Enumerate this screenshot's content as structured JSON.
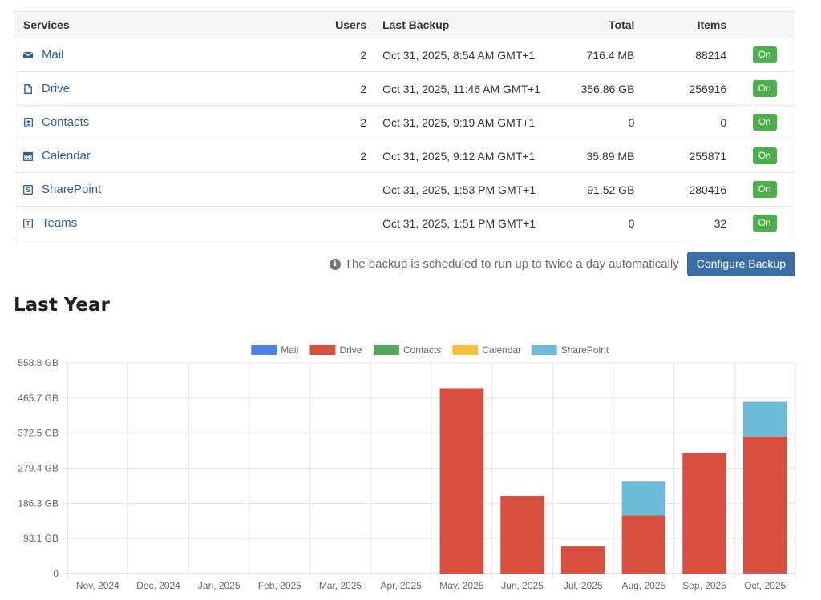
{
  "table": {
    "headers": {
      "services": "Services",
      "users": "Users",
      "last_backup": "Last Backup",
      "total": "Total",
      "items": "Items"
    },
    "rows": [
      {
        "icon": "mail-icon",
        "name": "Mail",
        "users": "2",
        "last_backup": "Oct 31, 2025, 8:54 AM GMT+1",
        "total": "716.4 MB",
        "items": "88214",
        "status": "On"
      },
      {
        "icon": "file-icon",
        "name": "Drive",
        "users": "2",
        "last_backup": "Oct 31, 2025, 11:46 AM GMT+1",
        "total": "356.86 GB",
        "items": "256916",
        "status": "On"
      },
      {
        "icon": "contact-card-icon",
        "name": "Contacts",
        "users": "2",
        "last_backup": "Oct 31, 2025, 9:19 AM GMT+1",
        "total": "0",
        "items": "0",
        "status": "On"
      },
      {
        "icon": "calendar-icon",
        "name": "Calendar",
        "users": "2",
        "last_backup": "Oct 31, 2025, 9:12 AM GMT+1",
        "total": "35.89 MB",
        "items": "255871",
        "status": "On"
      },
      {
        "icon": "sharepoint-icon",
        "name": "SharePoint",
        "users": "",
        "last_backup": "Oct 31, 2025, 1:53 PM GMT+1",
        "total": "91.52 GB",
        "items": "280416",
        "status": "On"
      },
      {
        "icon": "teams-icon",
        "name": "Teams",
        "users": "",
        "last_backup": "Oct 31, 2025, 1:51 PM GMT+1",
        "total": "0",
        "items": "32",
        "status": "On"
      }
    ]
  },
  "note": {
    "icon": "info-icon",
    "text": "The backup is scheduled to run up to twice a day automatically"
  },
  "configure_button": "Configure Backup",
  "section_title": "Last Year",
  "colors": {
    "link": "#2f5f97",
    "badge_on": "#4cae4c",
    "button": "#3a6ea5"
  },
  "chart_data": {
    "type": "bar",
    "stacked": true,
    "categories": [
      "Nov, 2024",
      "Dec, 2024",
      "Jan, 2025",
      "Feb, 2025",
      "Mar, 2025",
      "Apr, 2025",
      "May, 2025",
      "Jun, 2025",
      "Jul, 2025",
      "Aug, 2025",
      "Sep, 2025",
      "Oct, 2025"
    ],
    "series": [
      {
        "name": "Mail",
        "color": "#4e83e6",
        "values": [
          0,
          0,
          0,
          0,
          0,
          0,
          0,
          0,
          0,
          0,
          0,
          0.7
        ]
      },
      {
        "name": "Drive",
        "color": "#d94f3f",
        "values": [
          0,
          0,
          0,
          0,
          0,
          0,
          492,
          206,
          72,
          154,
          320,
          363
        ]
      },
      {
        "name": "Contacts",
        "color": "#55a65a",
        "values": [
          0,
          0,
          0,
          0,
          0,
          0,
          0,
          0,
          0,
          0,
          0,
          0
        ]
      },
      {
        "name": "Calendar",
        "color": "#f4c13c",
        "values": [
          0,
          0,
          0,
          0,
          0,
          0,
          0,
          0,
          0,
          0,
          0,
          0
        ]
      },
      {
        "name": "SharePoint",
        "color": "#6cbbd9",
        "values": [
          0,
          0,
          0,
          0,
          0,
          0,
          0,
          0,
          0,
          90,
          0,
          92
        ]
      }
    ],
    "y_ticks": [
      "0",
      "93.1 GB",
      "186.3 GB",
      "279.4 GB",
      "372.5 GB",
      "465.7 GB",
      "558.8 GB"
    ],
    "ylim": [
      0,
      558.8
    ],
    "y_unit": "GB",
    "grid": true,
    "legend": "top-center"
  }
}
